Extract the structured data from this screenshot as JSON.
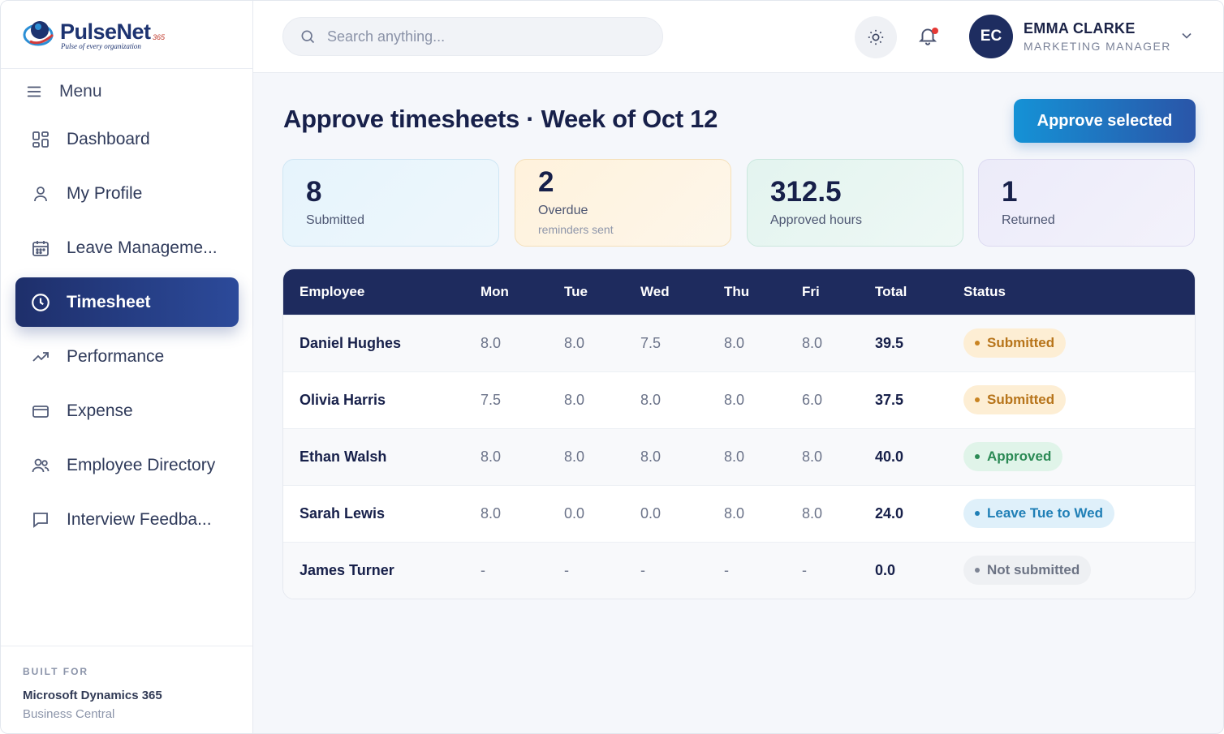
{
  "brand": {
    "name": "PulseNet",
    "sup": "365",
    "tagline": "Pulse of every organization"
  },
  "sidebar": {
    "menu_label": "Menu",
    "items": [
      {
        "label": "Dashboard",
        "icon": "dashboard-icon"
      },
      {
        "label": "My Profile",
        "icon": "user-icon"
      },
      {
        "label": "Leave Manageme...",
        "icon": "calendar-icon"
      },
      {
        "label": "Timesheet",
        "icon": "clock-icon",
        "active": true
      },
      {
        "label": "Performance",
        "icon": "trend-icon"
      },
      {
        "label": "Expense",
        "icon": "card-icon"
      },
      {
        "label": "Employee Directory",
        "icon": "users-icon"
      },
      {
        "label": "Interview Feedba...",
        "icon": "chat-icon"
      }
    ],
    "built_for_label": "BUILT FOR",
    "built_for_product": "Microsoft Dynamics 365",
    "built_for_sub": "Business Central"
  },
  "topbar": {
    "search_placeholder": "Search anything...",
    "user_initials": "EC",
    "user_name": "EMMA CLARKE",
    "user_role": "MARKETING MANAGER"
  },
  "page": {
    "title": "Approve timesheets · Week of Oct 12",
    "approve_button": "Approve selected"
  },
  "stats": [
    {
      "value": "8",
      "label": "Submitted"
    },
    {
      "value": "2",
      "label": "Overdue",
      "sub": "reminders sent"
    },
    {
      "value": "312.5",
      "label": "Approved hours"
    },
    {
      "value": "1",
      "label": "Returned"
    }
  ],
  "table": {
    "headers": [
      "Employee",
      "Mon",
      "Tue",
      "Wed",
      "Thu",
      "Fri",
      "Total",
      "Status"
    ],
    "rows": [
      {
        "employee": "Daniel Hughes",
        "mon": "8.0",
        "tue": "8.0",
        "wed": "7.5",
        "thu": "8.0",
        "fri": "8.0",
        "total": "39.5",
        "status": "Submitted"
      },
      {
        "employee": "Olivia Harris",
        "mon": "7.5",
        "tue": "8.0",
        "wed": "8.0",
        "thu": "8.0",
        "fri": "6.0",
        "total": "37.5",
        "status": "Submitted"
      },
      {
        "employee": "Ethan Walsh",
        "mon": "8.0",
        "tue": "8.0",
        "wed": "8.0",
        "thu": "8.0",
        "fri": "8.0",
        "total": "40.0",
        "status": "Approved"
      },
      {
        "employee": "Sarah Lewis",
        "mon": "8.0",
        "tue": "0.0",
        "wed": "0.0",
        "thu": "8.0",
        "fri": "8.0",
        "total": "24.0",
        "status": "Leave Tue to Wed"
      },
      {
        "employee": "James Turner",
        "mon": "-",
        "tue": "-",
        "wed": "-",
        "thu": "-",
        "fri": "-",
        "total": "0.0",
        "status": "Not submitted"
      }
    ]
  },
  "colors": {
    "navy": "#1e2b5e",
    "accent_blue": "#1592d6",
    "submitted": "#b7741a",
    "approved": "#2b8a55",
    "leave": "#1f7fb6",
    "not_submitted": "#6c7384"
  }
}
